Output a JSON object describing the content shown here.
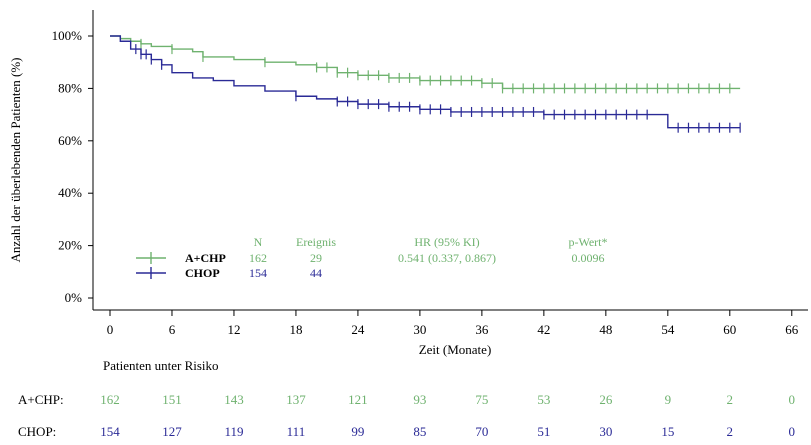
{
  "chart_data": {
    "type": "line",
    "ylabel": "Anzahl der überlebenden Patienten (%)",
    "xlabel": "Zeit (Monate)",
    "xlim": [
      0,
      66
    ],
    "ylim": [
      0,
      100
    ],
    "x_ticks": [
      "0",
      "6",
      "12",
      "18",
      "24",
      "30",
      "36",
      "42",
      "48",
      "54",
      "60",
      "66"
    ],
    "y_ticks": [
      "0%",
      "20%",
      "40%",
      "60%",
      "80%",
      "100%"
    ],
    "grid": false,
    "colors": {
      "A+CHP": "#6fb26f",
      "CHOP": "#2a2a96"
    },
    "series": [
      {
        "name": "A+CHP",
        "color": "#6fb26f",
        "x": [
          0,
          1,
          2,
          3,
          4,
          6,
          8,
          9,
          12,
          15,
          18,
          20,
          22,
          24,
          27,
          30,
          36,
          38,
          42,
          45,
          48,
          54,
          60,
          61
        ],
        "y": [
          100,
          99,
          98,
          97,
          96,
          95,
          94,
          92,
          91,
          90,
          89,
          88,
          86,
          85,
          84,
          83,
          82,
          80,
          80,
          80,
          80,
          80,
          80,
          80
        ],
        "censor_x": [
          3,
          6,
          9,
          15,
          20,
          21,
          22,
          23,
          24,
          25,
          26,
          27,
          28,
          29,
          30,
          31,
          32,
          33,
          34,
          35,
          36,
          37,
          38,
          39,
          40,
          41,
          42,
          43,
          44,
          45,
          46,
          47,
          48,
          49,
          50,
          51,
          52,
          53,
          54,
          55,
          56,
          57,
          58,
          59,
          60
        ]
      },
      {
        "name": "CHOP",
        "color": "#2a2a96",
        "x": [
          0,
          1,
          2,
          3,
          4,
          5,
          6,
          8,
          10,
          12,
          15,
          18,
          20,
          22,
          24,
          27,
          30,
          33,
          36,
          40,
          42,
          48,
          52,
          54,
          60,
          61
        ],
        "y": [
          100,
          98,
          95,
          93,
          91,
          89,
          86,
          84,
          83,
          81,
          79,
          77,
          76,
          75,
          74,
          73,
          72,
          71,
          71,
          71,
          70,
          70,
          70,
          65,
          65,
          65
        ],
        "censor_x": [
          2.5,
          3,
          3.5,
          4,
          5,
          18,
          22,
          23,
          24,
          25,
          26,
          27,
          28,
          29,
          30,
          31,
          32,
          33,
          34,
          35,
          36,
          37,
          38,
          39,
          40,
          41,
          42,
          43,
          44,
          45,
          46,
          47,
          48,
          49,
          50,
          51,
          52,
          55,
          56,
          57,
          58,
          59,
          60,
          61
        ]
      }
    ],
    "legend": {
      "headers": [
        "N",
        "Ereignis",
        "HR (95% KI)",
        "p-Wert*"
      ],
      "rows": [
        {
          "name": "A+CHP",
          "N": "162",
          "events": "29",
          "hr": "0.541 (0.337, 0.867)",
          "p": "0.0096"
        },
        {
          "name": "CHOP",
          "N": "154",
          "events": "44",
          "hr": "",
          "p": ""
        }
      ]
    }
  },
  "risk_table": {
    "title": "Patienten unter Risiko",
    "rows": [
      {
        "label": "A+CHP:",
        "color": "#6fb26f",
        "values": [
          "162",
          "151",
          "143",
          "137",
          "121",
          "93",
          "75",
          "53",
          "26",
          "9",
          "2",
          "0"
        ]
      },
      {
        "label": "CHOP:",
        "color": "#2a2a96",
        "values": [
          "154",
          "127",
          "119",
          "111",
          "99",
          "85",
          "70",
          "51",
          "30",
          "15",
          "2",
          "0"
        ]
      }
    ]
  }
}
